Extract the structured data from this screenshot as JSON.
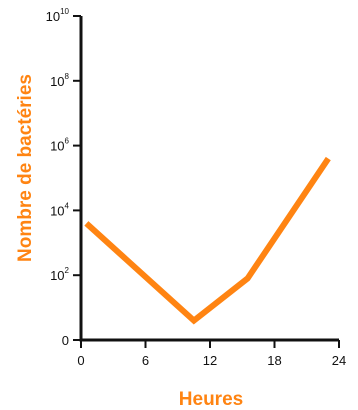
{
  "chart_data": {
    "type": "line",
    "title": "",
    "xlabel": "Heures",
    "ylabel": "Nombre de bactéries",
    "x_ticks": [
      "0",
      "6",
      "12",
      "18",
      "24"
    ],
    "y_ticks": [
      {
        "base": "0",
        "exp": ""
      },
      {
        "base": "10",
        "exp": "2"
      },
      {
        "base": "10",
        "exp": "4"
      },
      {
        "base": "10",
        "exp": "6"
      },
      {
        "base": "10",
        "exp": "8"
      },
      {
        "base": "10",
        "exp": "10"
      }
    ],
    "y_scale": "log",
    "xlim": [
      0,
      24
    ],
    "ylim_log10": [
      0,
      10
    ],
    "grid": false,
    "series": [
      {
        "x_hours": [
          0.5,
          10.5,
          15.5,
          23
        ],
        "y_log10": [
          3.6,
          0.6,
          1.9,
          5.6
        ],
        "color": "#ff8412"
      }
    ],
    "colors": {
      "accent": "#ff8412",
      "axis": "#111111"
    }
  }
}
